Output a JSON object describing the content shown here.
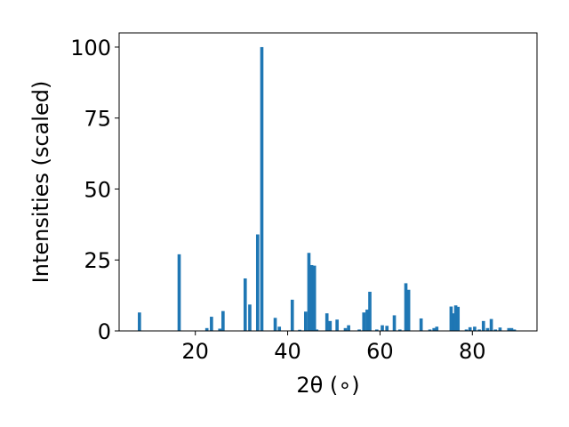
{
  "chart_data": {
    "type": "bar",
    "title": "",
    "xlabel": "2θ (∘)",
    "ylabel": "Intensities (scaled)",
    "xlim": [
      3.5,
      94
    ],
    "ylim": [
      0,
      105
    ],
    "xticks": [
      20,
      40,
      60,
      80
    ],
    "yticks": [
      0,
      25,
      50,
      75,
      100
    ],
    "grid": false,
    "bar_color": "#1f77b4",
    "bar_width_deg": 0.7,
    "x": [
      7.9,
      16.5,
      22.5,
      23.5,
      25.3,
      26.0,
      30.8,
      31.8,
      33.5,
      34.4,
      37.3,
      38.2,
      41.0,
      42.6,
      43.9,
      44.6,
      45.2,
      45.8,
      46.3,
      48.5,
      49.2,
      50.7,
      52.5,
      53.2,
      55.5,
      56.5,
      57.2,
      57.8,
      59.3,
      60.5,
      61.5,
      63.1,
      64.3,
      65.6,
      66.2,
      68.9,
      70.8,
      71.7,
      72.3,
      75.4,
      75.9,
      76.4,
      76.9,
      78.7,
      79.5,
      80.5,
      81.5,
      82.4,
      83.3,
      84.1,
      85.0,
      86.0,
      87.9,
      88.5,
      89.1
    ],
    "values": [
      6.5,
      27.0,
      1.0,
      5.0,
      0.8,
      7.0,
      18.5,
      9.3,
      34.0,
      100.0,
      4.6,
      1.5,
      11.0,
      0.4,
      6.8,
      27.5,
      23.2,
      23.0,
      0.5,
      6.2,
      3.5,
      4.0,
      1.0,
      2.0,
      0.5,
      6.5,
      7.5,
      13.8,
      0.5,
      2.0,
      1.8,
      5.5,
      0.5,
      16.8,
      14.5,
      4.4,
      0.5,
      1.0,
      1.5,
      8.6,
      6.2,
      9.0,
      8.5,
      0.5,
      1.3,
      1.5,
      0.5,
      3.5,
      1.0,
      4.2,
      0.5,
      1.2,
      1.0,
      1.0,
      0.5
    ]
  }
}
